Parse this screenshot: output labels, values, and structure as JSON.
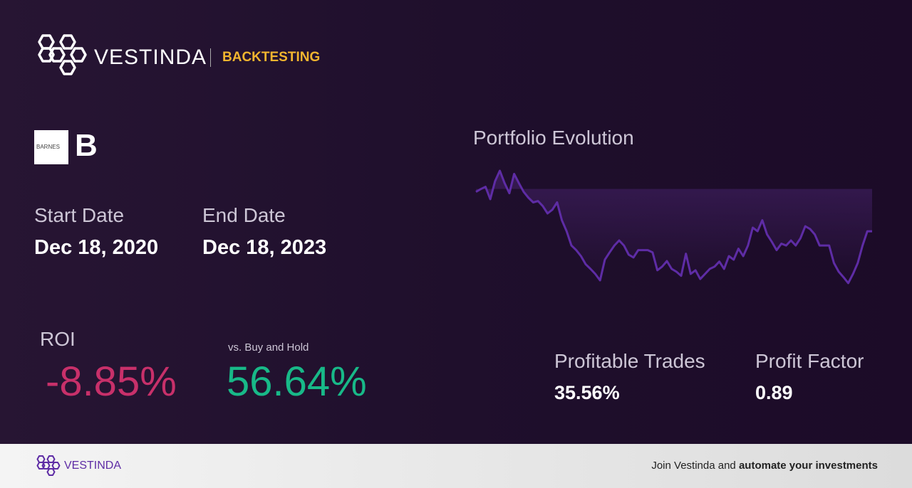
{
  "header": {
    "brand": "VESTINDA",
    "section": "BACKTESTING"
  },
  "asset": {
    "logo_text": "BARNES",
    "ticker": "B"
  },
  "dates": {
    "start_label": "Start Date",
    "start": "Dec 18, 2020",
    "end_label": "End Date",
    "end": "Dec 18, 2023"
  },
  "roi": {
    "label": "ROI",
    "value": "-8.85%",
    "compare_label": "vs. Buy and Hold",
    "compare_value": "56.64%"
  },
  "chart_data": {
    "type": "line",
    "title": "Portfolio Evolution",
    "color": "#5e2ca5",
    "values": [
      99.7,
      100.3,
      100.8,
      98.1,
      102.0,
      104.3,
      101.6,
      99.4,
      103.6,
      101.6,
      99.7,
      98.4,
      97.4,
      97.7,
      96.6,
      95.0,
      95.8,
      97.4,
      93.5,
      91.1,
      88.0,
      87.0,
      85.7,
      83.9,
      82.9,
      81.8,
      80.4,
      84.9,
      86.5,
      88.0,
      89.1,
      88.0,
      86.0,
      85.4,
      87.0,
      87.0,
      87.0,
      86.5,
      82.6,
      83.4,
      84.6,
      82.9,
      82.3,
      81.4,
      86.2,
      81.8,
      82.6,
      80.7,
      81.8,
      82.9,
      83.4,
      84.5,
      82.9,
      85.7,
      84.9,
      87.3,
      85.7,
      88.0,
      91.9,
      91.1,
      93.5,
      90.4,
      88.8,
      87.0,
      88.4,
      88.0,
      89.1,
      88.0,
      89.6,
      92.2,
      91.6,
      90.4,
      88.0,
      88.0,
      88.0,
      84.2,
      82.3,
      81.1,
      79.8,
      81.8,
      84.2,
      88.0,
      91.1,
      91.1
    ]
  },
  "stats": {
    "trades_label": "Profitable Trades",
    "trades_value": "35.56%",
    "factor_label": "Profit Factor",
    "factor_value": "0.89"
  },
  "footer": {
    "brand": "VESTINDA",
    "cta_prefix": "Join Vestinda and",
    "cta_bold": "automate your investments"
  }
}
